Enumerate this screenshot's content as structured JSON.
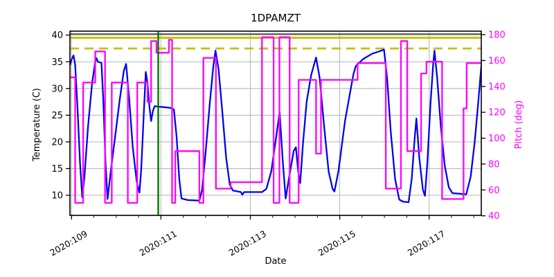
{
  "title": "1DPAMZT",
  "axes": {
    "x": {
      "label": "Date",
      "tick_labels": [
        "2020:109",
        "2020:111",
        "2020:113",
        "2020:115",
        "2020:117"
      ],
      "tick_days": [
        109,
        111,
        113,
        115,
        117
      ],
      "minor_tick_step_days": 0.5,
      "range_days": [
        108.965,
        118.205
      ]
    },
    "y_left": {
      "label": "Temperature (C)",
      "ticks": [
        10,
        15,
        20,
        25,
        30,
        35,
        40
      ],
      "range": [
        6.2,
        40.7
      ],
      "color": "#000000"
    },
    "y_right": {
      "label": "Pitch (deg)",
      "ticks": [
        40,
        60,
        80,
        100,
        120,
        140,
        160,
        180
      ],
      "range": [
        40,
        180.6
      ],
      "color": "#ff00ff"
    }
  },
  "chart_data": {
    "type": "line",
    "grid": true,
    "title": "1DPAMZT",
    "xlabel": "Date",
    "ylabel_left": "Temperature (C)",
    "ylabel_right": "Pitch (deg)",
    "series": [
      {
        "name": "temperature",
        "axis": "left",
        "color": "#0000ee",
        "style": "line",
        "points": [
          [
            108.965,
            34.4
          ],
          [
            109.0,
            35.4
          ],
          [
            109.045,
            36.2
          ],
          [
            109.08,
            34.5
          ],
          [
            109.13,
            27
          ],
          [
            109.19,
            16
          ],
          [
            109.24,
            9.6
          ],
          [
            109.29,
            13.5
          ],
          [
            109.37,
            23
          ],
          [
            109.46,
            31
          ],
          [
            109.53,
            35
          ],
          [
            109.56,
            35.7
          ],
          [
            109.59,
            35.0
          ],
          [
            109.67,
            34.8
          ],
          [
            109.71,
            28
          ],
          [
            109.76,
            16
          ],
          [
            109.805,
            9.3
          ],
          [
            109.87,
            14
          ],
          [
            109.96,
            20
          ],
          [
            110.08,
            28
          ],
          [
            110.17,
            33.3
          ],
          [
            110.22,
            34.6
          ],
          [
            110.29,
            28
          ],
          [
            110.37,
            19
          ],
          [
            110.46,
            12.5
          ],
          [
            110.52,
            10.5
          ],
          [
            110.56,
            15
          ],
          [
            110.62,
            26
          ],
          [
            110.66,
            33.1
          ],
          [
            110.7,
            31
          ],
          [
            110.745,
            26.5
          ],
          [
            110.78,
            23.9
          ],
          [
            110.82,
            25.8
          ],
          [
            110.86,
            26.7
          ],
          [
            110.94,
            26.6
          ],
          [
            111.08,
            26.5
          ],
          [
            111.2,
            26.4
          ],
          [
            111.29,
            26.1
          ],
          [
            111.35,
            21
          ],
          [
            111.41,
            13
          ],
          [
            111.46,
            9.4
          ],
          [
            111.6,
            9.1
          ],
          [
            111.86,
            9.0
          ],
          [
            111.92,
            11
          ],
          [
            112.0,
            18
          ],
          [
            112.09,
            27
          ],
          [
            112.17,
            34
          ],
          [
            112.22,
            37.1
          ],
          [
            112.29,
            33.5
          ],
          [
            112.37,
            26
          ],
          [
            112.46,
            17
          ],
          [
            112.54,
            12
          ],
          [
            112.61,
            10.9
          ],
          [
            112.79,
            10.6
          ],
          [
            112.82,
            10.1
          ],
          [
            112.86,
            10.6
          ],
          [
            113.26,
            10.6
          ],
          [
            113.36,
            11.2
          ],
          [
            113.47,
            14.5
          ],
          [
            113.58,
            21
          ],
          [
            113.655,
            25.6
          ],
          [
            113.72,
            17
          ],
          [
            113.79,
            9.4
          ],
          [
            113.86,
            13
          ],
          [
            113.97,
            18.3
          ],
          [
            114.02,
            19.0
          ],
          [
            114.07,
            14.5
          ],
          [
            114.115,
            12.3
          ],
          [
            114.18,
            20
          ],
          [
            114.26,
            27.5
          ],
          [
            114.36,
            32.5
          ],
          [
            114.47,
            35.8
          ],
          [
            114.55,
            32
          ],
          [
            114.65,
            23
          ],
          [
            114.75,
            14.5
          ],
          [
            114.84,
            11.2
          ],
          [
            114.88,
            10.7
          ],
          [
            114.97,
            14.5
          ],
          [
            115.12,
            24
          ],
          [
            115.28,
            31.5
          ],
          [
            115.31,
            32.8
          ],
          [
            115.36,
            34.2
          ],
          [
            115.52,
            35.5
          ],
          [
            115.72,
            36.5
          ],
          [
            115.9,
            37.0
          ],
          [
            115.99,
            37.3
          ],
          [
            116.06,
            32
          ],
          [
            116.14,
            22
          ],
          [
            116.24,
            13
          ],
          [
            116.33,
            9.2
          ],
          [
            116.42,
            8.8
          ],
          [
            116.54,
            8.7
          ],
          [
            116.61,
            13
          ],
          [
            116.68,
            21
          ],
          [
            116.715,
            24.4
          ],
          [
            116.78,
            17
          ],
          [
            116.86,
            11
          ],
          [
            116.905,
            9.9
          ],
          [
            116.96,
            16
          ],
          [
            117.03,
            27
          ],
          [
            117.09,
            34.5
          ],
          [
            117.12,
            37.1
          ],
          [
            117.18,
            32
          ],
          [
            117.26,
            23
          ],
          [
            117.35,
            15.5
          ],
          [
            117.44,
            11.5
          ],
          [
            117.52,
            10.4
          ],
          [
            117.83,
            10.2
          ],
          [
            117.93,
            13.5
          ],
          [
            118.02,
            20
          ],
          [
            118.1,
            27.5
          ],
          [
            118.17,
            34.5
          ]
        ]
      },
      {
        "name": "pitch",
        "axis": "right",
        "color": "#ff00ff",
        "style": "steps",
        "segments": [
          [
            108.965,
            109.08,
            147
          ],
          [
            109.08,
            109.26,
            50
          ],
          [
            109.26,
            109.53,
            143
          ],
          [
            109.53,
            109.75,
            167
          ],
          [
            109.75,
            109.9,
            50
          ],
          [
            109.9,
            110.26,
            143
          ],
          [
            110.26,
            110.47,
            50
          ],
          [
            110.47,
            110.7,
            143
          ],
          [
            110.7,
            110.78,
            128
          ],
          [
            110.78,
            110.9,
            175
          ],
          [
            110.9,
            111.18,
            166
          ],
          [
            111.18,
            111.25,
            176
          ],
          [
            111.25,
            111.32,
            50
          ],
          [
            111.32,
            111.86,
            90
          ],
          [
            111.86,
            111.95,
            50
          ],
          [
            111.95,
            112.23,
            162
          ],
          [
            112.23,
            112.56,
            61
          ],
          [
            112.56,
            113.26,
            66
          ],
          [
            113.26,
            113.52,
            178
          ],
          [
            113.52,
            113.65,
            50
          ],
          [
            113.65,
            113.88,
            178
          ],
          [
            113.88,
            114.08,
            50
          ],
          [
            114.08,
            114.47,
            145
          ],
          [
            114.47,
            114.58,
            88
          ],
          [
            114.58,
            115.4,
            145
          ],
          [
            115.4,
            116.03,
            158
          ],
          [
            116.03,
            116.37,
            61
          ],
          [
            116.37,
            116.51,
            175
          ],
          [
            116.51,
            116.82,
            90
          ],
          [
            116.82,
            116.94,
            150
          ],
          [
            116.94,
            117.29,
            159
          ],
          [
            117.29,
            117.77,
            53
          ],
          [
            117.77,
            117.84,
            123
          ],
          [
            117.84,
            118.17,
            158
          ]
        ]
      }
    ],
    "annotations": {
      "yellow_solid_limit_temp": 39.5,
      "yellow_dashed_limit_temp": 37.5,
      "black_line_temp": 40.2,
      "green_vline_day": 110.94
    },
    "legend": "none"
  },
  "colors": {
    "temperature_line": "#0000ee",
    "pitch_line": "#ff00ff",
    "limit_lines": "#c2c200",
    "vline": "#007700",
    "grid": "#b3b3b3",
    "frame": "#000000",
    "background": "#ffffff"
  }
}
